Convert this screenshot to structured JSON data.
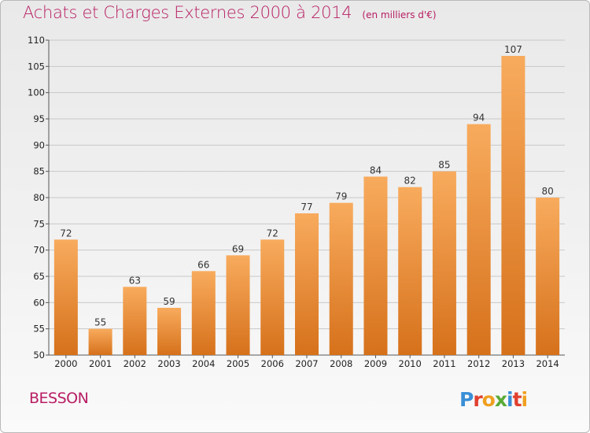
{
  "header": {
    "title": "Achats et Charges Externes 2000 à 2014",
    "unit": "(en milliers d'€)"
  },
  "footer": {
    "town": "BESSON",
    "brand": "Proxiti"
  },
  "colors": {
    "title": "#b81e63",
    "bar_light": "#f7a85a",
    "bar_dark": "#d9721c",
    "grid": "#c8c8c8"
  },
  "chart_data": {
    "type": "bar",
    "title": "Achats et Charges Externes 2000 à 2014",
    "subtitle": "(en milliers d'€)",
    "xlabel": "",
    "ylabel": "",
    "ylim": [
      50,
      110
    ],
    "yticks": [
      50,
      55,
      60,
      65,
      70,
      75,
      80,
      85,
      90,
      95,
      100,
      105,
      110
    ],
    "grid": true,
    "categories": [
      "2000",
      "2001",
      "2002",
      "2003",
      "2004",
      "2005",
      "2006",
      "2007",
      "2008",
      "2009",
      "2010",
      "2011",
      "2012",
      "2013",
      "2014"
    ],
    "values": [
      72,
      55,
      63,
      59,
      66,
      69,
      72,
      77,
      79,
      84,
      82,
      85,
      94,
      107,
      80
    ]
  }
}
